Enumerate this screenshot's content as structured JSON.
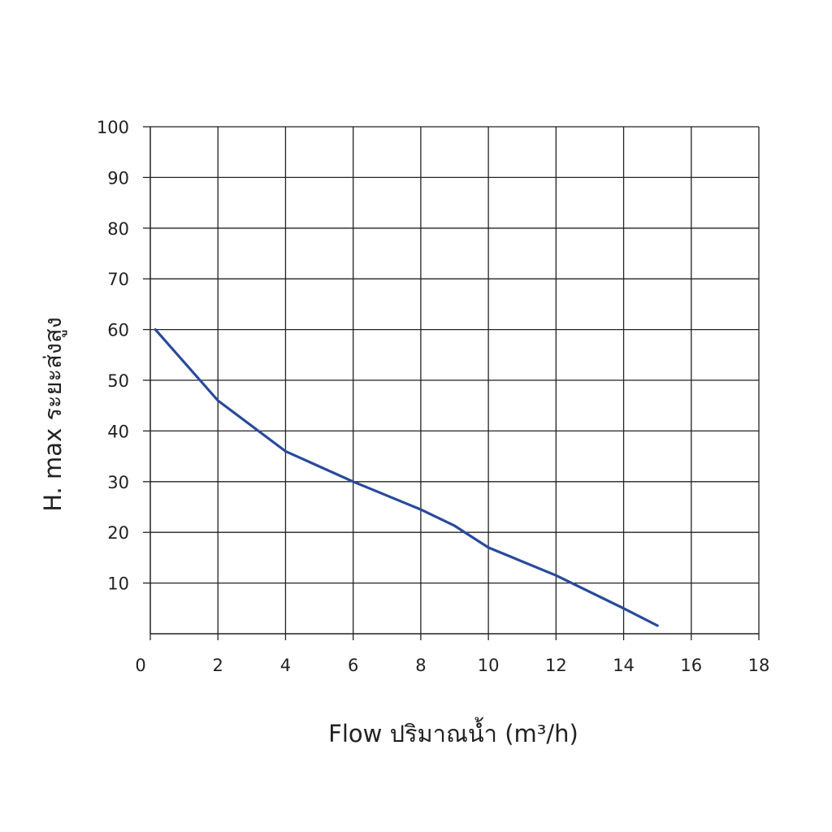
{
  "chart_data": {
    "type": "line",
    "xlabel": "Flow  ปริมาณน้ำ (m³/h)",
    "ylabel": "H. max  ระยะส่งสูง",
    "xlim": [
      0,
      18
    ],
    "ylim": [
      0,
      100
    ],
    "x_ticks": [
      "0",
      "2",
      "4",
      "6",
      "8",
      "10",
      "12",
      "14",
      "16",
      "18"
    ],
    "y_ticks": [
      "10",
      "20",
      "30",
      "40",
      "50",
      "60",
      "70",
      "80",
      "90",
      "100"
    ],
    "grid": true,
    "line_color": "#2a4a9a",
    "series": [
      {
        "x": [
          0.15,
          2,
          4,
          6,
          8,
          9,
          10,
          12,
          14,
          15
        ],
        "values": [
          60,
          46,
          36,
          30,
          24.5,
          21.3,
          17,
          11.5,
          5,
          1.6
        ]
      }
    ]
  }
}
